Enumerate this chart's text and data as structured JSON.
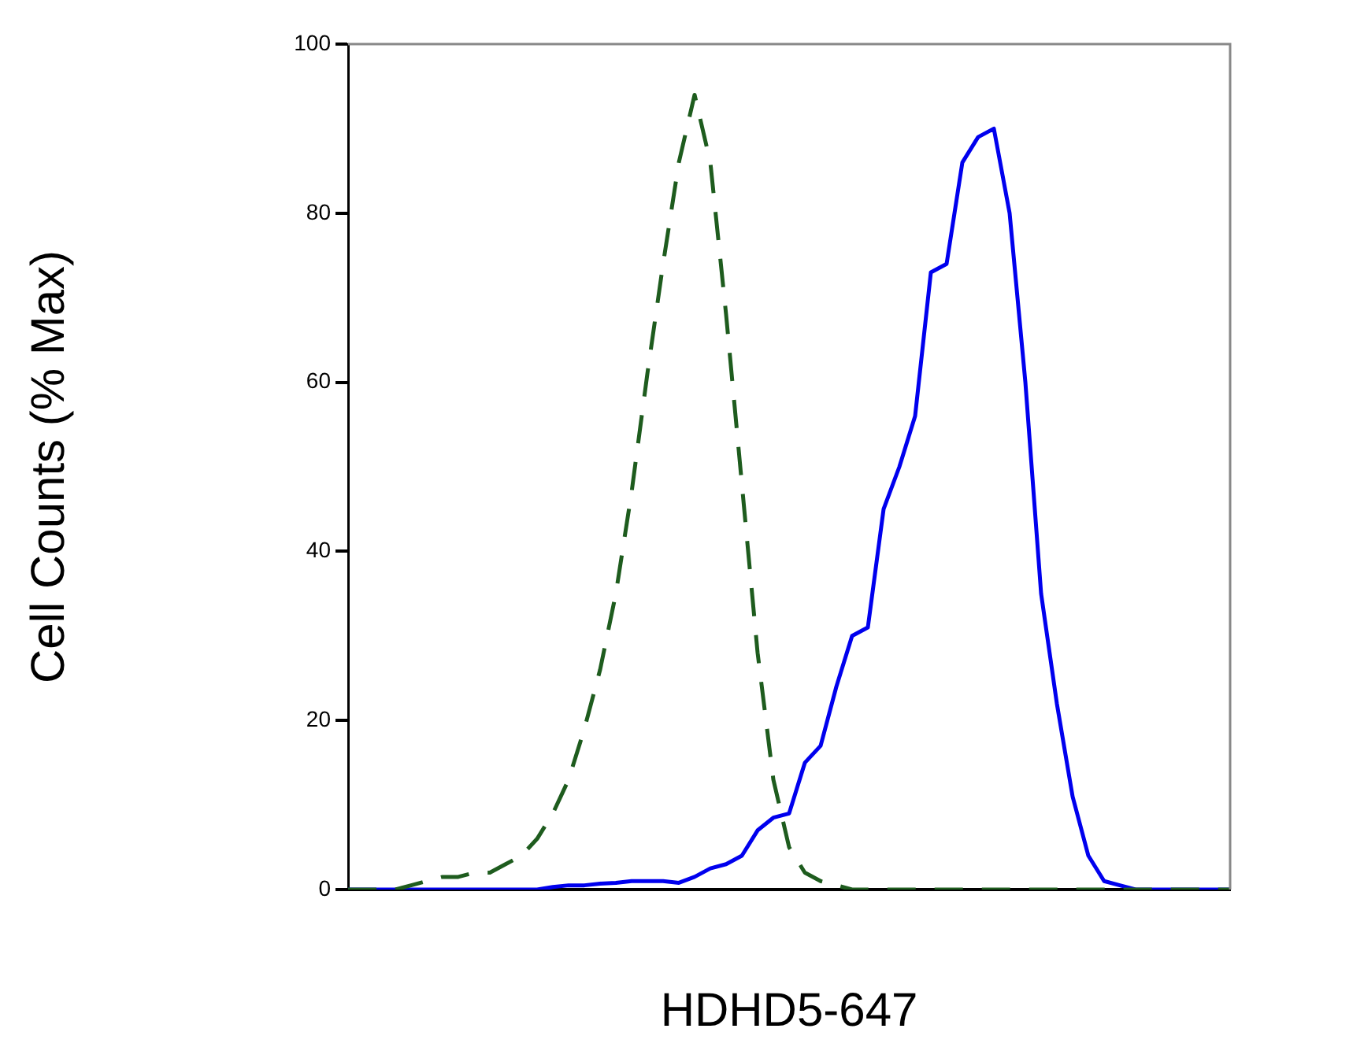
{
  "chart_data": {
    "type": "line",
    "xlabel": "HDHD5-647",
    "ylabel": "Cell Counts (% Max)",
    "categories": [
      null,
      null,
      null,
      null,
      null,
      null,
      null,
      null,
      null,
      null,
      null,
      null,
      null,
      null,
      null,
      null,
      null,
      null,
      null,
      null,
      null,
      null,
      null,
      null,
      null,
      null,
      null,
      null,
      null,
      null,
      null,
      null,
      null,
      null,
      null,
      null,
      null,
      null,
      null,
      null,
      null,
      null,
      null,
      null,
      null,
      null,
      null,
      null,
      null,
      null,
      null,
      null,
      null,
      null,
      null,
      null,
      null
    ],
    "series": [
      {
        "color": "#1e5c1e",
        "line_style": "dashed",
        "values": [
          0,
          0,
          0,
          0,
          0.5,
          1,
          1.5,
          1.5,
          2,
          2,
          3,
          4,
          6,
          9,
          13,
          19,
          26,
          35,
          47,
          61,
          74,
          86,
          94,
          86,
          68,
          48,
          28,
          13,
          5,
          2,
          1,
          0.5,
          0,
          0,
          0,
          0,
          0,
          0,
          0,
          0,
          0,
          0,
          0,
          0,
          0,
          0,
          0,
          0,
          0,
          0,
          0,
          0,
          0,
          0,
          0,
          0,
          0
        ]
      },
      {
        "color": "#0000ee",
        "line_style": "solid",
        "values": [
          0,
          0,
          0,
          0,
          0,
          0,
          0,
          0,
          0,
          0,
          0,
          0,
          0,
          0.3,
          0.5,
          0.5,
          0.7,
          0.8,
          1,
          1,
          1,
          0.8,
          1.5,
          2.5,
          3,
          4,
          7,
          8.5,
          9,
          15,
          17,
          24,
          30,
          31,
          45,
          50,
          56,
          73,
          74,
          86,
          89,
          90,
          80,
          60,
          35,
          22,
          11,
          4,
          1,
          0.5,
          0,
          0,
          0,
          0,
          0,
          0,
          0
        ]
      }
    ],
    "ylim": [
      0,
      100
    ],
    "yticks": [
      0,
      20,
      40,
      60,
      80,
      100
    ],
    "grid": false,
    "legend": false,
    "marker": "none",
    "tick_labels": "y"
  }
}
